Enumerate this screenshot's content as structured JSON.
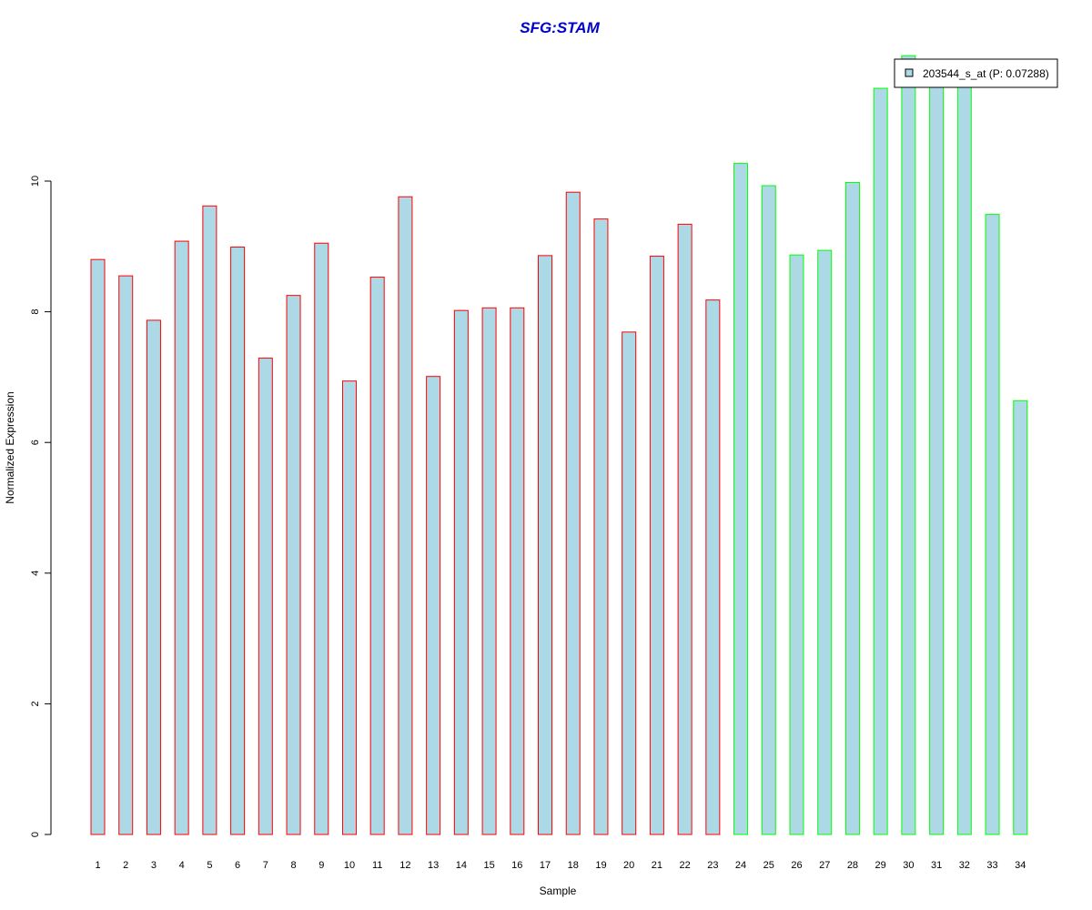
{
  "chart_data": {
    "type": "bar",
    "title": "SFG:STAM",
    "xlabel": "Sample",
    "ylabel": "Normalized Expression",
    "categories": [
      "1",
      "2",
      "3",
      "4",
      "5",
      "6",
      "7",
      "8",
      "9",
      "10",
      "11",
      "12",
      "13",
      "14",
      "15",
      "16",
      "17",
      "18",
      "19",
      "20",
      "21",
      "22",
      "23",
      "24",
      "25",
      "26",
      "27",
      "28",
      "29",
      "30",
      "31",
      "32",
      "33",
      "34"
    ],
    "series": [
      {
        "name": "203544_s_at (P: 0.07288)",
        "values": [
          8.8,
          8.55,
          7.87,
          9.08,
          9.62,
          8.99,
          7.29,
          8.25,
          9.05,
          6.94,
          8.53,
          9.76,
          7.01,
          8.02,
          8.06,
          8.06,
          8.86,
          9.83,
          9.42,
          7.69,
          8.85,
          9.34,
          8.18,
          10.27,
          9.93,
          8.87,
          8.94,
          9.98,
          11.42,
          11.92,
          11.6,
          11.5,
          9.49,
          6.64
        ]
      }
    ],
    "groups": [
      "1",
      "1",
      "1",
      "1",
      "1",
      "1",
      "1",
      "1",
      "1",
      "1",
      "1",
      "1",
      "1",
      "1",
      "1",
      "1",
      "1",
      "1",
      "1",
      "1",
      "1",
      "1",
      "1",
      "2",
      "2",
      "2",
      "2",
      "2",
      "2",
      "2",
      "2",
      "2",
      "2",
      "2"
    ],
    "yticks": [
      "0",
      "2",
      "4",
      "6",
      "8",
      "10"
    ],
    "ylim": [
      0,
      11.95
    ],
    "grid": false,
    "legend_position": "top-right",
    "colors": {
      "bar_fill": "#add8e6",
      "group_1_border": "#ff0000",
      "group_2_border": "#00ff00",
      "title": "#0000cd"
    }
  }
}
